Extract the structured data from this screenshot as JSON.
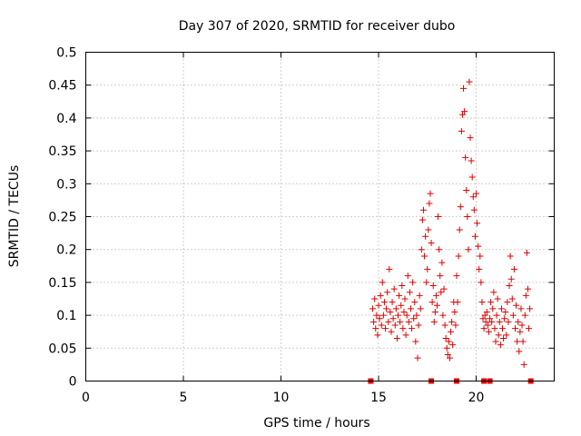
{
  "chart_data": {
    "type": "scatter",
    "title": "Day 307 of 2020, SRMTID for receiver dubo",
    "xlabel": "GPS time / hours",
    "ylabel": "SRMTID / TECUs",
    "xlim": [
      0,
      24
    ],
    "ylim": [
      0,
      0.5
    ],
    "grid": true,
    "series_color": "#e00000",
    "x_ticks": [
      0,
      5,
      10,
      15,
      20
    ],
    "x_tick_labels": [
      "0",
      "5",
      "10",
      "15",
      "20"
    ],
    "y_ticks": [
      0,
      0.05,
      0.1,
      0.15,
      0.2,
      0.25,
      0.3,
      0.35,
      0.4,
      0.45,
      0.5
    ],
    "y_tick_labels": [
      "0",
      "0.05",
      "0.1",
      "0.15",
      "0.2",
      "0.25",
      "0.3",
      "0.35",
      "0.4",
      "0.45",
      "0.5"
    ],
    "zero_markers_x": [
      14.6,
      17.7,
      19.0,
      20.4,
      20.7,
      22.8
    ],
    "points": [
      [
        14.7,
        0.11
      ],
      [
        14.75,
        0.09
      ],
      [
        14.8,
        0.125
      ],
      [
        14.85,
        0.08
      ],
      [
        14.9,
        0.1
      ],
      [
        14.95,
        0.07
      ],
      [
        15.0,
        0.115
      ],
      [
        15.05,
        0.095
      ],
      [
        15.1,
        0.13
      ],
      [
        15.15,
        0.085
      ],
      [
        15.2,
        0.15
      ],
      [
        15.25,
        0.1
      ],
      [
        15.3,
        0.12
      ],
      [
        15.35,
        0.08
      ],
      [
        15.4,
        0.11
      ],
      [
        15.45,
        0.135
      ],
      [
        15.5,
        0.09
      ],
      [
        15.55,
        0.17
      ],
      [
        15.6,
        0.105
      ],
      [
        15.65,
        0.075
      ],
      [
        15.7,
        0.12
      ],
      [
        15.75,
        0.095
      ],
      [
        15.8,
        0.14
      ],
      [
        15.85,
        0.085
      ],
      [
        15.9,
        0.11
      ],
      [
        15.95,
        0.065
      ],
      [
        16.0,
        0.1
      ],
      [
        16.05,
        0.13
      ],
      [
        16.1,
        0.09
      ],
      [
        16.15,
        0.115
      ],
      [
        16.2,
        0.145
      ],
      [
        16.25,
        0.08
      ],
      [
        16.3,
        0.105
      ],
      [
        16.35,
        0.125
      ],
      [
        16.4,
        0.07
      ],
      [
        16.45,
        0.1
      ],
      [
        16.5,
        0.16
      ],
      [
        16.55,
        0.09
      ],
      [
        16.6,
        0.135
      ],
      [
        16.65,
        0.11
      ],
      [
        16.7,
        0.08
      ],
      [
        16.75,
        0.15
      ],
      [
        16.8,
        0.095
      ],
      [
        16.85,
        0.12
      ],
      [
        16.9,
        0.06
      ],
      [
        16.95,
        0.1
      ],
      [
        17.0,
        0.035
      ],
      [
        17.05,
        0.085
      ],
      [
        17.1,
        0.13
      ],
      [
        17.15,
        0.11
      ],
      [
        17.2,
        0.2
      ],
      [
        17.25,
        0.245
      ],
      [
        17.3,
        0.26
      ],
      [
        17.35,
        0.19
      ],
      [
        17.4,
        0.22
      ],
      [
        17.45,
        0.15
      ],
      [
        17.5,
        0.17
      ],
      [
        17.55,
        0.23
      ],
      [
        17.6,
        0.27
      ],
      [
        17.65,
        0.285
      ],
      [
        17.7,
        0.21
      ],
      [
        17.75,
        0.12
      ],
      [
        17.8,
        0.145
      ],
      [
        17.85,
        0.09
      ],
      [
        17.9,
        0.105
      ],
      [
        17.95,
        0.13
      ],
      [
        18.0,
        0.115
      ],
      [
        18.05,
        0.25
      ],
      [
        18.1,
        0.2
      ],
      [
        18.15,
        0.16
      ],
      [
        18.2,
        0.135
      ],
      [
        18.25,
        0.18
      ],
      [
        18.3,
        0.1
      ],
      [
        18.35,
        0.14
      ],
      [
        18.4,
        0.085
      ],
      [
        18.45,
        0.065
      ],
      [
        18.5,
        0.05
      ],
      [
        18.55,
        0.04
      ],
      [
        18.6,
        0.06
      ],
      [
        18.65,
        0.035
      ],
      [
        18.7,
        0.075
      ],
      [
        18.75,
        0.09
      ],
      [
        18.8,
        0.055
      ],
      [
        18.85,
        0.12
      ],
      [
        18.9,
        0.105
      ],
      [
        18.95,
        0.085
      ],
      [
        19.0,
        0.16
      ],
      [
        19.05,
        0.12
      ],
      [
        19.1,
        0.19
      ],
      [
        19.15,
        0.23
      ],
      [
        19.2,
        0.265
      ],
      [
        19.25,
        0.38
      ],
      [
        19.3,
        0.405
      ],
      [
        19.35,
        0.445
      ],
      [
        19.4,
        0.41
      ],
      [
        19.45,
        0.34
      ],
      [
        19.5,
        0.29
      ],
      [
        19.55,
        0.25
      ],
      [
        19.6,
        0.2
      ],
      [
        19.65,
        0.455
      ],
      [
        19.7,
        0.37
      ],
      [
        19.75,
        0.335
      ],
      [
        19.8,
        0.31
      ],
      [
        19.85,
        0.28
      ],
      [
        19.9,
        0.26
      ],
      [
        19.95,
        0.22
      ],
      [
        20.0,
        0.285
      ],
      [
        20.05,
        0.24
      ],
      [
        20.1,
        0.205
      ],
      [
        20.15,
        0.17
      ],
      [
        20.2,
        0.19
      ],
      [
        20.25,
        0.15
      ],
      [
        20.3,
        0.12
      ],
      [
        20.35,
        0.095
      ],
      [
        20.4,
        0.08
      ],
      [
        20.45,
        0.1
      ],
      [
        20.5,
        0.09
      ],
      [
        20.55,
        0.105
      ],
      [
        20.6,
        0.085
      ],
      [
        20.65,
        0.075
      ],
      [
        20.7,
        0.095
      ],
      [
        20.75,
        0.12
      ],
      [
        20.8,
        0.09
      ],
      [
        20.85,
        0.11
      ],
      [
        20.9,
        0.135
      ],
      [
        20.95,
        0.08
      ],
      [
        21.0,
        0.06
      ],
      [
        21.05,
        0.1
      ],
      [
        21.1,
        0.125
      ],
      [
        21.15,
        0.07
      ],
      [
        21.2,
        0.09
      ],
      [
        21.25,
        0.055
      ],
      [
        21.3,
        0.11
      ],
      [
        21.35,
        0.08
      ],
      [
        21.4,
        0.065
      ],
      [
        21.45,
        0.095
      ],
      [
        21.5,
        0.105
      ],
      [
        21.55,
        0.07
      ],
      [
        21.6,
        0.12
      ],
      [
        21.65,
        0.09
      ],
      [
        21.7,
        0.145
      ],
      [
        21.75,
        0.19
      ],
      [
        21.8,
        0.155
      ],
      [
        21.85,
        0.125
      ],
      [
        21.9,
        0.1
      ],
      [
        21.95,
        0.17
      ],
      [
        22.0,
        0.08
      ],
      [
        22.05,
        0.115
      ],
      [
        22.1,
        0.06
      ],
      [
        22.15,
        0.09
      ],
      [
        22.2,
        0.045
      ],
      [
        22.25,
        0.075
      ],
      [
        22.3,
        0.11
      ],
      [
        22.35,
        0.085
      ],
      [
        22.4,
        0.06
      ],
      [
        22.45,
        0.025
      ],
      [
        22.5,
        0.1
      ],
      [
        22.55,
        0.13
      ],
      [
        22.6,
        0.195
      ],
      [
        22.65,
        0.14
      ],
      [
        22.7,
        0.08
      ],
      [
        22.75,
        0.11
      ]
    ]
  }
}
